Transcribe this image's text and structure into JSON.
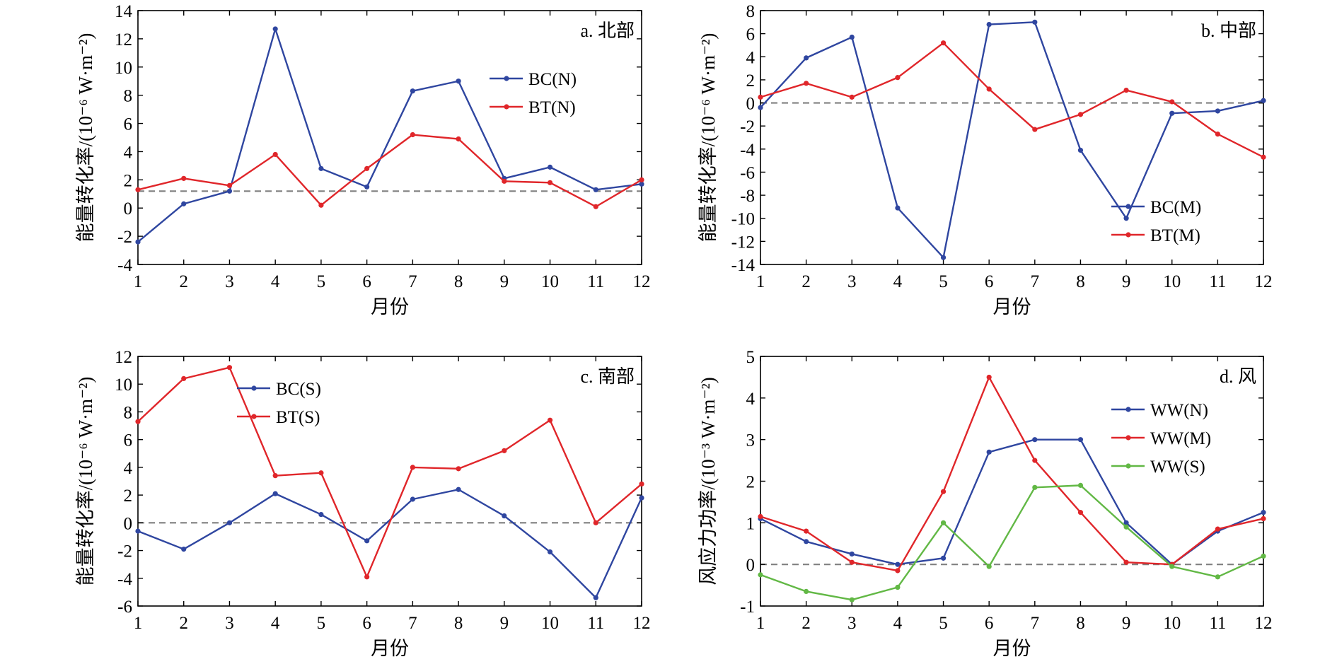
{
  "colors": {
    "blue": "#2f46a0",
    "red": "#e0262a",
    "green": "#62b845",
    "zero_line": "#808080",
    "frame": "#000000"
  },
  "chart_data": [
    {
      "type": "line",
      "title": "a. 北部",
      "xlabel": "月份",
      "ylabel": "能量转化率/(10⁻⁶ W·m⁻²)",
      "x": [
        1,
        2,
        3,
        4,
        5,
        6,
        7,
        8,
        9,
        10,
        11,
        12
      ],
      "xlim": [
        1,
        12
      ],
      "ylim": [
        -4,
        14
      ],
      "yticks": [
        -4,
        -2,
        0,
        2,
        4,
        6,
        8,
        10,
        12,
        14
      ],
      "reference_line": 1.2,
      "legend_position": "top-right",
      "series": [
        {
          "name": "BC(N)",
          "color": "#2f46a0",
          "values": [
            -2.4,
            0.3,
            1.2,
            12.7,
            2.8,
            1.5,
            8.3,
            9.0,
            2.1,
            2.9,
            1.3,
            1.7
          ]
        },
        {
          "name": "BT(N)",
          "color": "#e0262a",
          "values": [
            1.3,
            2.1,
            1.6,
            3.8,
            0.2,
            2.8,
            5.2,
            4.9,
            1.9,
            1.8,
            0.1,
            2.0
          ]
        }
      ]
    },
    {
      "type": "line",
      "title": "b. 中部",
      "xlabel": "月份",
      "ylabel": "能量转化率/(10⁻⁶ W·m⁻²)",
      "x": [
        1,
        2,
        3,
        4,
        5,
        6,
        7,
        8,
        9,
        10,
        11,
        12
      ],
      "xlim": [
        1,
        12
      ],
      "ylim": [
        -14,
        8
      ],
      "yticks": [
        -14,
        -12,
        -10,
        -8,
        -6,
        -4,
        -2,
        0,
        2,
        4,
        6,
        8
      ],
      "reference_line": 0,
      "legend_position": "bottom-right",
      "series": [
        {
          "name": "BC(M)",
          "color": "#2f46a0",
          "values": [
            -0.4,
            3.9,
            5.7,
            -9.1,
            -13.4,
            6.8,
            7.0,
            -4.1,
            -10.0,
            -0.9,
            -0.7,
            0.2
          ]
        },
        {
          "name": "BT(M)",
          "color": "#e0262a",
          "values": [
            0.5,
            1.7,
            0.5,
            2.2,
            5.2,
            1.2,
            -2.3,
            -1.0,
            1.1,
            0.1,
            -2.7,
            -4.7
          ]
        }
      ]
    },
    {
      "type": "line",
      "title": "c. 南部",
      "xlabel": "月份",
      "ylabel": "能量转化率/(10⁻⁶ W·m⁻²)",
      "x": [
        1,
        2,
        3,
        4,
        5,
        6,
        7,
        8,
        9,
        10,
        11,
        12
      ],
      "xlim": [
        1,
        12
      ],
      "ylim": [
        -6,
        12
      ],
      "yticks": [
        -6,
        -4,
        -2,
        0,
        2,
        4,
        6,
        8,
        10,
        12
      ],
      "reference_line": 0,
      "legend_position": "top-left",
      "series": [
        {
          "name": "BC(S)",
          "color": "#2f46a0",
          "values": [
            -0.6,
            -1.9,
            0.0,
            2.1,
            0.6,
            -1.3,
            1.7,
            2.4,
            0.5,
            -2.1,
            -5.4,
            1.8
          ]
        },
        {
          "name": "BT(S)",
          "color": "#e0262a",
          "values": [
            7.3,
            10.4,
            11.2,
            3.4,
            3.6,
            -3.9,
            4.0,
            3.9,
            5.2,
            7.4,
            0.0,
            2.8
          ]
        }
      ]
    },
    {
      "type": "line",
      "title": "d. 风",
      "xlabel": "月份",
      "ylabel": "风应力功率/(10⁻³ W·m⁻²)",
      "x": [
        1,
        2,
        3,
        4,
        5,
        6,
        7,
        8,
        9,
        10,
        11,
        12
      ],
      "xlim": [
        1,
        12
      ],
      "ylim": [
        -1,
        5
      ],
      "yticks": [
        -1,
        0,
        1,
        2,
        3,
        4,
        5
      ],
      "reference_line": 0,
      "legend_position": "top-right",
      "series": [
        {
          "name": "WW(N)",
          "color": "#2f46a0",
          "values": [
            1.1,
            0.55,
            0.25,
            0.0,
            0.15,
            2.7,
            3.0,
            3.0,
            1.0,
            0.0,
            0.8,
            1.25
          ]
        },
        {
          "name": "WW(M)",
          "color": "#e0262a",
          "values": [
            1.15,
            0.8,
            0.05,
            -0.15,
            1.75,
            4.5,
            2.5,
            1.25,
            0.05,
            0.0,
            0.85,
            1.1
          ]
        },
        {
          "name": "WW(S)",
          "color": "#62b845",
          "values": [
            -0.25,
            -0.65,
            -0.85,
            -0.55,
            1.0,
            -0.05,
            1.85,
            1.9,
            0.9,
            -0.05,
            -0.3,
            0.2
          ]
        }
      ]
    }
  ]
}
